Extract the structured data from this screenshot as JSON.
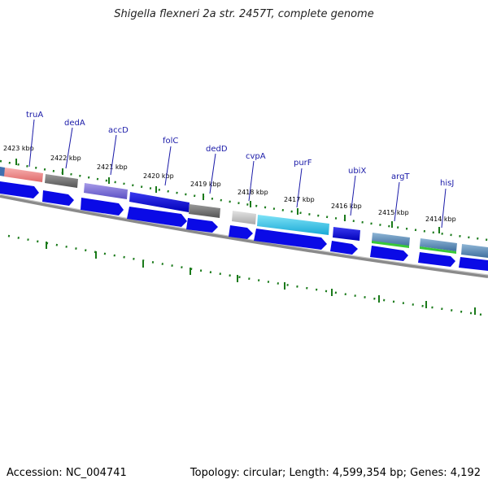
{
  "title": "Shigella flexneri 2a str. 2457T, complete genome",
  "footer": {
    "accession": "Accession: NC_004741",
    "summary": "Topology: circular; Length: 4,599,354 bp; Genes: 4,192"
  },
  "map": {
    "tick_labels": [
      "2423 kbp",
      "2422 kbp",
      "2421 kbp",
      "2420 kbp",
      "2419 kbp",
      "2418 kbp",
      "2417 kbp",
      "2416 kbp",
      "2415 kbp",
      "2414 kbp"
    ],
    "gene_labels": [
      "truA",
      "dedA",
      "accD",
      "folC",
      "dedD",
      "cvpA",
      "purF",
      "ubiX",
      "argT",
      "hisJ"
    ],
    "colors": {
      "backbone": "#8a8a8a",
      "tick": "#1a7a1a",
      "cds_arrow": "#0a0ae6",
      "label_line": "#1a1aa8"
    }
  }
}
